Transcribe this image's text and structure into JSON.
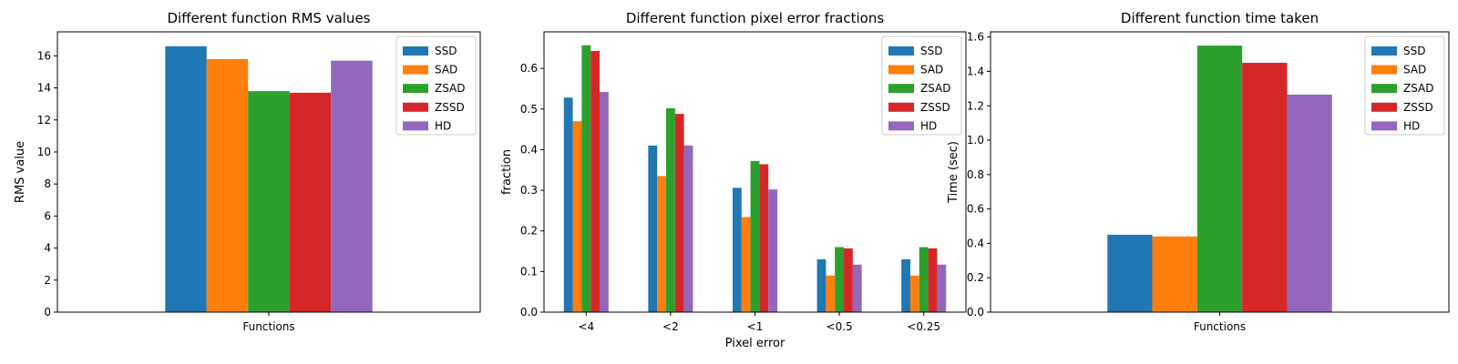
{
  "chart_data": [
    {
      "type": "bar",
      "title": "Different function RMS values",
      "xlabel": "",
      "ylabel": "RMS value",
      "categories": [
        "Functions"
      ],
      "ylim": [
        0,
        17.5
      ],
      "yticks": [
        0,
        2,
        4,
        6,
        8,
        10,
        12,
        14,
        16
      ],
      "legend_loc": "top-right",
      "grid": false,
      "series": [
        {
          "name": "SSD",
          "values": [
            16.6
          ]
        },
        {
          "name": "SAD",
          "values": [
            15.8
          ]
        },
        {
          "name": "ZSAD",
          "values": [
            13.8
          ]
        },
        {
          "name": "ZSSD",
          "values": [
            13.7
          ]
        },
        {
          "name": "HD",
          "values": [
            15.7
          ]
        }
      ]
    },
    {
      "type": "bar",
      "title": "Different function pixel error fractions",
      "xlabel": "Pixel error",
      "ylabel": "fraction",
      "categories": [
        "<4",
        "<2",
        "<1",
        "<0.5",
        "<0.25"
      ],
      "ylim": [
        0,
        0.69
      ],
      "yticks": [
        0.0,
        0.1,
        0.2,
        0.3,
        0.4,
        0.5,
        0.6
      ],
      "legend_loc": "top-right",
      "grid": false,
      "series": [
        {
          "name": "SSD",
          "values": [
            0.528,
            0.41,
            0.306,
            0.13,
            0.13
          ]
        },
        {
          "name": "SAD",
          "values": [
            0.47,
            0.335,
            0.234,
            0.09,
            0.09
          ]
        },
        {
          "name": "ZSAD",
          "values": [
            0.657,
            0.502,
            0.372,
            0.16,
            0.16
          ]
        },
        {
          "name": "ZSSD",
          "values": [
            0.643,
            0.488,
            0.364,
            0.157,
            0.157
          ]
        },
        {
          "name": "HD",
          "values": [
            0.542,
            0.41,
            0.302,
            0.117,
            0.117
          ]
        }
      ]
    },
    {
      "type": "bar",
      "title": "Different function time taken",
      "xlabel": "",
      "ylabel": "Time (sec)",
      "categories": [
        "Functions"
      ],
      "ylim": [
        0,
        1.63
      ],
      "yticks": [
        0.0,
        0.2,
        0.4,
        0.6,
        0.8,
        1.0,
        1.2,
        1.4,
        1.6
      ],
      "legend_loc": "top-right",
      "grid": false,
      "series": [
        {
          "name": "SSD",
          "values": [
            0.45
          ]
        },
        {
          "name": "SAD",
          "values": [
            0.44
          ]
        },
        {
          "name": "ZSAD",
          "values": [
            1.55
          ]
        },
        {
          "name": "ZSSD",
          "values": [
            1.45
          ]
        },
        {
          "name": "HD",
          "values": [
            1.265
          ]
        }
      ]
    }
  ],
  "colors": [
    "#1f77b4",
    "#ff7f0e",
    "#2ca02c",
    "#d62728",
    "#9467bd"
  ]
}
